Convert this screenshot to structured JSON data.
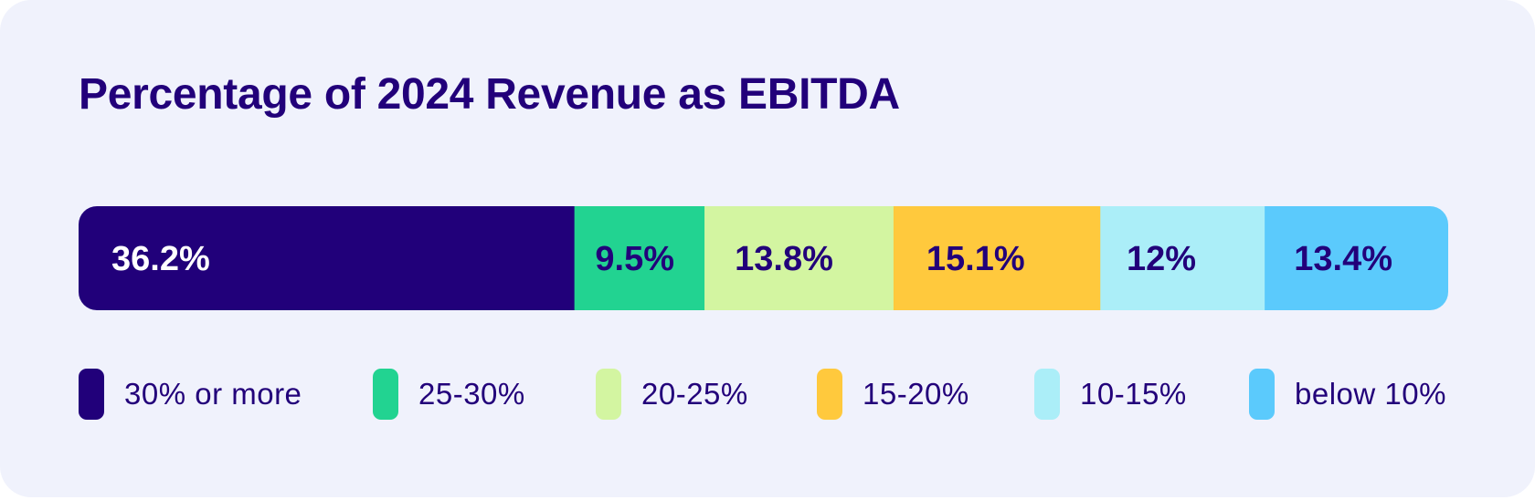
{
  "chart_data": {
    "type": "bar",
    "orientation": "horizontal-stacked-100",
    "title": "Percentage of 2024 Revenue as EBITDA",
    "categories": [
      "30% or more",
      "25-30%",
      "20-25%",
      "15-20%",
      "10-15%",
      "below 10%"
    ],
    "values": [
      36.2,
      9.5,
      13.8,
      15.1,
      12,
      13.4
    ],
    "value_labels": [
      "36.2%",
      "9.5%",
      "13.8%",
      "15.1%",
      "12%",
      "13.4%"
    ],
    "colors": [
      "#21007a",
      "#22d391",
      "#d3f5a1",
      "#ffc93d",
      "#abeef8",
      "#5bcafc"
    ],
    "label_colors": [
      "#ffffff",
      "#22007a",
      "#22007a",
      "#22007a",
      "#22007a",
      "#22007a"
    ],
    "legend_position": "bottom",
    "xlabel": "",
    "ylabel": "",
    "grid": false
  }
}
